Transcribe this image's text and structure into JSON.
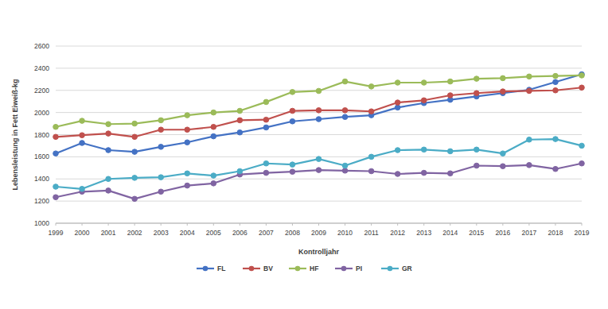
{
  "chart_data": {
    "type": "line",
    "x_label": "Kontrolljahr",
    "y_label": "Lebensleistung in Fett Eiweiß-kg",
    "x": [
      1999,
      2000,
      2001,
      2002,
      2003,
      2004,
      2005,
      2006,
      2007,
      2008,
      2009,
      2010,
      2011,
      2012,
      2013,
      2014,
      2015,
      2016,
      2017,
      2018,
      2019
    ],
    "xlim": [
      1999,
      2019
    ],
    "xticks": [
      1999,
      2000,
      2001,
      2002,
      2003,
      2004,
      2005,
      2006,
      2007,
      2008,
      2009,
      2010,
      2011,
      2012,
      2013,
      2014,
      2015,
      2016,
      2017,
      2018,
      2019
    ],
    "ylim": [
      1000,
      2600
    ],
    "yticks": [
      1000,
      1200,
      1400,
      1600,
      1800,
      2000,
      2200,
      2400,
      2600
    ],
    "grid": true,
    "legend": "bottom",
    "marker": "circle",
    "series": [
      {
        "name": "FL",
        "color": "#4472c4",
        "values": [
          1630,
          1725,
          1660,
          1645,
          1690,
          1730,
          1785,
          1820,
          1865,
          1920,
          1940,
          1960,
          1975,
          2045,
          2085,
          2115,
          2145,
          2175,
          2205,
          2275,
          2345
        ]
      },
      {
        "name": "BV",
        "color": "#c0504d",
        "values": [
          1780,
          1795,
          1810,
          1780,
          1845,
          1845,
          1870,
          1930,
          1935,
          2015,
          2020,
          2020,
          2010,
          2090,
          2110,
          2155,
          2175,
          2190,
          2195,
          2200,
          2225
        ]
      },
      {
        "name": "HF",
        "color": "#9bbb59",
        "values": [
          1870,
          1925,
          1895,
          1900,
          1930,
          1975,
          2000,
          2015,
          2095,
          2185,
          2195,
          2280,
          2235,
          2270,
          2270,
          2280,
          2305,
          2310,
          2325,
          2330,
          2335
        ]
      },
      {
        "name": "PI",
        "color": "#8064a2",
        "values": [
          1235,
          1285,
          1295,
          1220,
          1285,
          1340,
          1360,
          1440,
          1455,
          1465,
          1480,
          1475,
          1470,
          1445,
          1455,
          1450,
          1520,
          1515,
          1525,
          1490,
          1540
        ]
      },
      {
        "name": "GR",
        "color": "#4bacc6",
        "values": [
          1330,
          1310,
          1400,
          1410,
          1415,
          1450,
          1430,
          1470,
          1540,
          1530,
          1580,
          1520,
          1600,
          1660,
          1665,
          1650,
          1665,
          1630,
          1755,
          1760,
          1700
        ]
      }
    ]
  }
}
